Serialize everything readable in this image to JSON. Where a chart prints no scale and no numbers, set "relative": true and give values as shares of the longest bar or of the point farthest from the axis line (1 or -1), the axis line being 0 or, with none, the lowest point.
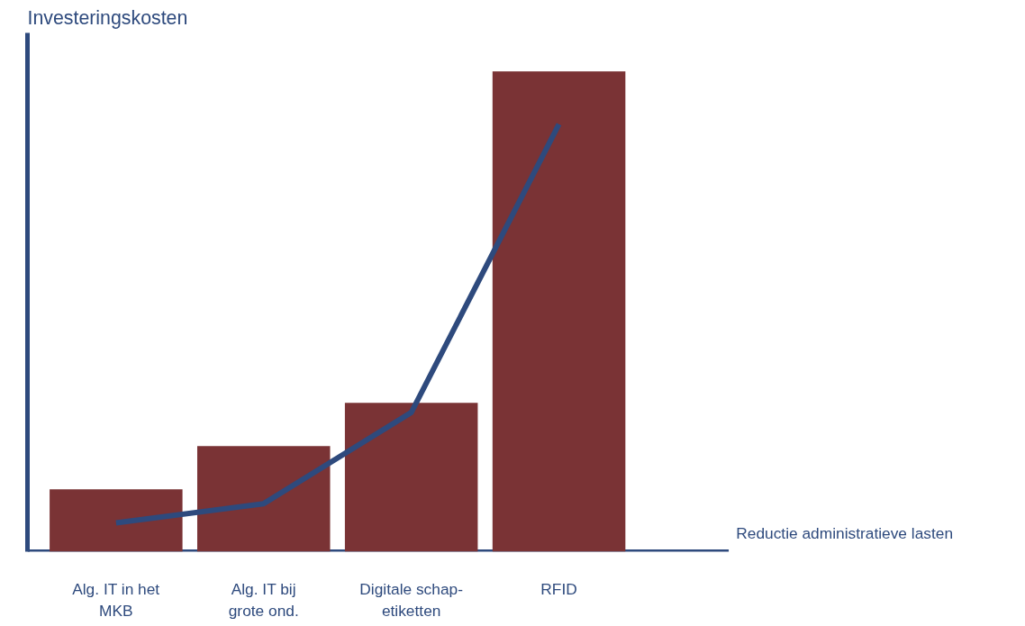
{
  "chart_data": {
    "type": "bar",
    "relative": true,
    "ylabel": "Investeringskosten",
    "categories": [
      "Alg. IT in het MKB",
      "Alg. IT bij grote ond.",
      "Digitale schap-etiketten",
      "RFID"
    ],
    "grid": false,
    "annotations": [
      "Reductie administratieve lasten"
    ],
    "series": [
      {
        "color": "#7a3335",
        "values": [
          0.13,
          0.22,
          0.31,
          1.0
        ]
      },
      {
        "type": "line",
        "color": "#2e4a7d",
        "values": [
          0.06,
          0.1,
          0.29,
          0.89
        ]
      }
    ]
  }
}
